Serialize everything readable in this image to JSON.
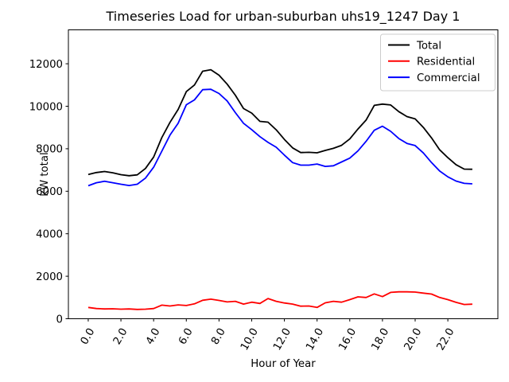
{
  "chart_data": {
    "type": "line",
    "title": "Timeseries Load for urban-suburban uhs19_1247  Day 1",
    "xlabel": "Hour of Year",
    "ylabel": "kW total",
    "grid": false,
    "legend_position": "upper right",
    "xlim": [
      -1.214,
      25.06
    ],
    "ylim": [
      0,
      13596
    ],
    "xticks": {
      "values": [
        0,
        2,
        4,
        6,
        8,
        10,
        12,
        14,
        16,
        18,
        20,
        22
      ],
      "labels": [
        "0.0",
        "2.0",
        "4.0",
        "6.0",
        "8.0",
        "10.0",
        "12.0",
        "14.0",
        "16.0",
        "18.0",
        "20.0",
        "22.0"
      ],
      "rotation_deg": 60
    },
    "yticks": {
      "values": [
        0,
        2000,
        4000,
        6000,
        8000,
        10000,
        12000
      ],
      "labels": [
        "0",
        "2000",
        "4000",
        "6000",
        "8000",
        "10000",
        "12000"
      ]
    },
    "x_hours": [
      0,
      0.5,
      1,
      1.5,
      2,
      2.5,
      3,
      3.5,
      4,
      4.5,
      5,
      5.5,
      6,
      6.5,
      7,
      7.5,
      8,
      8.5,
      9,
      9.5,
      10,
      10.5,
      11,
      11.5,
      12,
      12.5,
      13,
      13.5,
      14,
      14.5,
      15,
      15.5,
      16,
      16.5,
      17,
      17.5,
      18,
      18.5,
      19,
      19.5,
      20,
      20.5,
      21,
      21.5,
      22,
      22.5,
      23,
      23.5
    ],
    "series": [
      {
        "name": "Total",
        "color": "#000000",
        "values": [
          6790,
          6880,
          6930,
          6870,
          6780,
          6730,
          6770,
          7070,
          7610,
          8520,
          9240,
          9850,
          10690,
          11000,
          11650,
          11720,
          11460,
          11040,
          10520,
          9890,
          9680,
          9290,
          9250,
          8890,
          8440,
          8040,
          7820,
          7830,
          7810,
          7920,
          8020,
          8160,
          8460,
          8930,
          9350,
          10040,
          10100,
          10060,
          9745,
          9515,
          9405,
          9005,
          8510,
          7950,
          7580,
          7250,
          7040,
          7035
        ]
      },
      {
        "name": "Residential",
        "color": "#ff0000",
        "values": [
          530,
          480,
          460,
          470,
          450,
          460,
          440,
          450,
          480,
          640,
          600,
          650,
          620,
          700,
          870,
          920,
          860,
          790,
          820,
          690,
          780,
          720,
          950,
          820,
          740,
          690,
          590,
          600,
          530,
          750,
          820,
          780,
          900,
          1030,
          1000,
          1170,
          1040,
          1240,
          1265,
          1265,
          1255,
          1205,
          1160,
          1000,
          900,
          770,
          670,
          685
        ]
      },
      {
        "name": "Commercial",
        "color": "#0000ff",
        "values": [
          6260,
          6400,
          6470,
          6400,
          6330,
          6270,
          6330,
          6620,
          7130,
          7880,
          8640,
          9200,
          10070,
          10300,
          10780,
          10800,
          10600,
          10250,
          9700,
          9200,
          8900,
          8570,
          8300,
          8070,
          7700,
          7350,
          7230,
          7230,
          7280,
          7170,
          7200,
          7380,
          7560,
          7900,
          8350,
          8870,
          9060,
          8820,
          8480,
          8250,
          8150,
          7800,
          7350,
          6950,
          6680,
          6480,
          6370,
          6350
        ]
      }
    ]
  }
}
